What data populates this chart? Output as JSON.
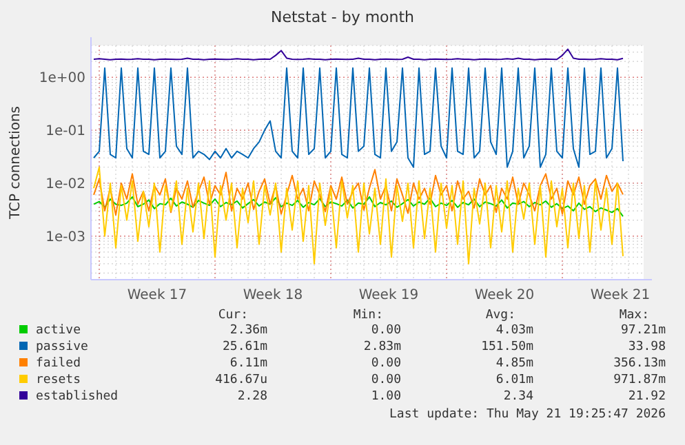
{
  "chart_data": {
    "type": "line",
    "title": "Netstat - by month",
    "ylabel": "TCP connections",
    "log": "y",
    "grid": true,
    "legend": "bottom",
    "xlim": [
      "2026-04-19T12:00",
      "2026-05-22T22:00"
    ],
    "xticks": [
      {
        "value": "2026-04-20T00:00",
        "label": null
      },
      {
        "value": "2026-04-23T12:00",
        "label": "Week 17"
      },
      {
        "value": "2026-04-27T00:00",
        "label": null
      },
      {
        "value": "2026-04-30T12:00",
        "label": "Week 18"
      },
      {
        "value": "2026-05-04T00:00",
        "label": null
      },
      {
        "value": "2026-05-07T12:00",
        "label": "Week 19"
      },
      {
        "value": "2026-05-11T00:00",
        "label": null
      },
      {
        "value": "2026-05-14T12:00",
        "label": "Week 20"
      },
      {
        "value": "2026-05-18T00:00",
        "label": null
      },
      {
        "value": "2026-05-21T12:00",
        "label": "Week 21"
      }
    ],
    "ylim": [
      0.00015,
      4
    ],
    "yticks": [
      {
        "value": 0.001,
        "label": "1e-03"
      },
      {
        "value": 0.01,
        "label": "1e-02"
      },
      {
        "value": 0.1,
        "label": "1e-01"
      },
      {
        "value": 1,
        "label": "1e+00"
      }
    ],
    "x": [
      "2026-04-19T16:00",
      "2026-04-20T00:00",
      "2026-04-20T08:00",
      "2026-04-20T16:00",
      "2026-04-21T00:00",
      "2026-04-21T08:00",
      "2026-04-21T16:00",
      "2026-04-22T00:00",
      "2026-04-22T08:00",
      "2026-04-22T16:00",
      "2026-04-23T00:00",
      "2026-04-23T08:00",
      "2026-04-23T16:00",
      "2026-04-24T00:00",
      "2026-04-24T08:00",
      "2026-04-24T16:00",
      "2026-04-25T00:00",
      "2026-04-25T08:00",
      "2026-04-25T16:00",
      "2026-04-26T00:00",
      "2026-04-26T08:00",
      "2026-04-26T16:00",
      "2026-04-27T00:00",
      "2026-04-27T08:00",
      "2026-04-27T16:00",
      "2026-04-28T00:00",
      "2026-04-28T08:00",
      "2026-04-28T16:00",
      "2026-04-29T00:00",
      "2026-04-29T08:00",
      "2026-04-29T16:00",
      "2026-04-30T00:00",
      "2026-04-30T08:00",
      "2026-04-30T16:00",
      "2026-05-01T00:00",
      "2026-05-01T08:00",
      "2026-05-01T16:00",
      "2026-05-02T00:00",
      "2026-05-02T08:00",
      "2026-05-02T16:00",
      "2026-05-03T00:00",
      "2026-05-03T08:00",
      "2026-05-03T16:00",
      "2026-05-04T00:00",
      "2026-05-04T08:00",
      "2026-05-04T16:00",
      "2026-05-05T00:00",
      "2026-05-05T08:00",
      "2026-05-05T16:00",
      "2026-05-06T00:00",
      "2026-05-06T08:00",
      "2026-05-06T16:00",
      "2026-05-07T00:00",
      "2026-05-07T08:00",
      "2026-05-07T16:00",
      "2026-05-08T00:00",
      "2026-05-08T08:00",
      "2026-05-08T16:00",
      "2026-05-09T00:00",
      "2026-05-09T08:00",
      "2026-05-09T16:00",
      "2026-05-10T00:00",
      "2026-05-10T08:00",
      "2026-05-10T16:00",
      "2026-05-11T00:00",
      "2026-05-11T08:00",
      "2026-05-11T16:00",
      "2026-05-12T00:00",
      "2026-05-12T08:00",
      "2026-05-12T16:00",
      "2026-05-13T00:00",
      "2026-05-13T08:00",
      "2026-05-13T16:00",
      "2026-05-14T00:00",
      "2026-05-14T08:00",
      "2026-05-14T16:00",
      "2026-05-15T00:00",
      "2026-05-15T08:00",
      "2026-05-15T16:00",
      "2026-05-16T00:00",
      "2026-05-16T08:00",
      "2026-05-16T16:00",
      "2026-05-17T00:00",
      "2026-05-17T08:00",
      "2026-05-17T16:00",
      "2026-05-18T00:00",
      "2026-05-18T08:00",
      "2026-05-18T16:00",
      "2026-05-19T00:00",
      "2026-05-19T08:00",
      "2026-05-19T16:00",
      "2026-05-20T00:00",
      "2026-05-20T08:00",
      "2026-05-20T16:00",
      "2026-05-21T00:00",
      "2026-05-21T08:00",
      "2026-05-21T16:00"
    ],
    "series": [
      {
        "name": "active",
        "color": "#00cc00",
        "values": [
          0.004,
          0.0045,
          0.0035,
          0.005,
          0.004,
          0.0038,
          0.0042,
          0.0055,
          0.0036,
          0.004,
          0.0048,
          0.0033,
          0.0041,
          0.0039,
          0.0052,
          0.0037,
          0.0044,
          0.004,
          0.0035,
          0.0047,
          0.0042,
          0.0038,
          0.005,
          0.0036,
          0.0043,
          0.0039,
          0.0046,
          0.0034,
          0.0041,
          0.0049,
          0.0037,
          0.0044,
          0.004,
          0.0053,
          0.0036,
          0.0042,
          0.0038,
          0.0047,
          0.0035,
          0.0043,
          0.0039,
          0.0051,
          0.0036,
          0.0044,
          0.0041,
          0.0037,
          0.0048,
          0.0034,
          0.0042,
          0.004,
          0.0055,
          0.0036,
          0.0043,
          0.0039,
          0.0046,
          0.0035,
          0.0041,
          0.0049,
          0.0037,
          0.0044,
          0.004,
          0.0052,
          0.0036,
          0.0042,
          0.0038,
          0.0047,
          0.0035,
          0.0043,
          0.0039,
          0.005,
          0.0036,
          0.0044,
          0.0041,
          0.0037,
          0.0048,
          0.0034,
          0.0042,
          0.004,
          0.0045,
          0.0036,
          0.0043,
          0.0039,
          0.0046,
          0.0035,
          0.0041,
          0.0033,
          0.0037,
          0.003,
          0.0042,
          0.0032,
          0.0036,
          0.0029,
          0.0034,
          0.0031,
          0.0028,
          0.0033,
          0.00236
        ]
      },
      {
        "name": "passive",
        "color": "#0066b3",
        "values": [
          0.03,
          0.04,
          1.5,
          0.035,
          0.03,
          1.5,
          0.045,
          0.03,
          1.5,
          0.04,
          0.035,
          1.5,
          0.03,
          0.04,
          1.5,
          0.05,
          0.035,
          1.5,
          0.03,
          0.04,
          0.035,
          0.028,
          0.04,
          0.03,
          0.045,
          0.03,
          0.04,
          0.035,
          0.03,
          0.045,
          0.06,
          0.1,
          0.15,
          0.04,
          0.03,
          1.5,
          0.04,
          0.03,
          1.5,
          0.035,
          0.045,
          1.5,
          0.03,
          0.04,
          1.5,
          0.035,
          0.03,
          1.5,
          0.04,
          0.05,
          1.5,
          0.035,
          0.03,
          1.5,
          0.04,
          0.06,
          1.5,
          0.03,
          0.02,
          1.5,
          0.035,
          0.04,
          1.5,
          0.05,
          0.03,
          1.5,
          0.04,
          0.035,
          1.5,
          0.03,
          0.04,
          1.5,
          0.06,
          0.035,
          1.5,
          0.02,
          0.04,
          1.5,
          0.03,
          0.05,
          1.5,
          0.02,
          0.035,
          1.5,
          0.04,
          0.03,
          1.5,
          0.045,
          0.02,
          1.5,
          0.035,
          0.04,
          1.5,
          0.03,
          0.045,
          1.5,
          0.026
        ]
      },
      {
        "name": "failed",
        "color": "#ff8000",
        "values": [
          0.006,
          0.012,
          0.003,
          0.008,
          0.0025,
          0.01,
          0.005,
          0.015,
          0.004,
          0.007,
          0.003,
          0.009,
          0.006,
          0.012,
          0.0028,
          0.008,
          0.005,
          0.011,
          0.0035,
          0.007,
          0.013,
          0.004,
          0.009,
          0.006,
          0.016,
          0.003,
          0.008,
          0.005,
          0.01,
          0.0032,
          0.007,
          0.012,
          0.004,
          0.009,
          0.0026,
          0.006,
          0.014,
          0.005,
          0.008,
          0.003,
          0.011,
          0.006,
          0.0029,
          0.009,
          0.005,
          0.013,
          0.004,
          0.007,
          0.01,
          0.0031,
          0.008,
          0.018,
          0.005,
          0.009,
          0.003,
          0.012,
          0.006,
          0.0027,
          0.01,
          0.005,
          0.008,
          0.004,
          0.014,
          0.006,
          0.009,
          0.003,
          0.011,
          0.005,
          0.007,
          0.0034,
          0.012,
          0.006,
          0.009,
          0.0028,
          0.008,
          0.005,
          0.013,
          0.004,
          0.01,
          0.006,
          0.003,
          0.009,
          0.015,
          0.005,
          0.008,
          0.0026,
          0.011,
          0.006,
          0.013,
          0.004,
          0.009,
          0.012,
          0.005,
          0.014,
          0.007,
          0.01,
          0.00611
        ]
      },
      {
        "name": "resets",
        "color": "#ffcc00",
        "values": [
          0.008,
          0.02,
          0.001,
          0.01,
          0.0006,
          0.009,
          0.002,
          0.011,
          0.0008,
          0.007,
          0.0015,
          0.01,
          0.0005,
          0.009,
          0.003,
          0.011,
          0.0007,
          0.008,
          0.0012,
          0.01,
          0.0009,
          0.011,
          0.0004,
          0.009,
          0.002,
          0.01,
          0.0006,
          0.008,
          0.0018,
          0.011,
          0.0007,
          0.009,
          0.0025,
          0.01,
          0.0005,
          0.008,
          0.0013,
          0.011,
          0.0008,
          0.009,
          0.0003,
          0.01,
          0.0016,
          0.008,
          0.0006,
          0.011,
          0.0022,
          0.009,
          0.0005,
          0.01,
          0.0011,
          0.008,
          0.0007,
          0.012,
          0.0004,
          0.009,
          0.0019,
          0.01,
          0.0006,
          0.011,
          0.0009,
          0.008,
          0.0005,
          0.01,
          0.0014,
          0.009,
          0.0007,
          0.011,
          0.0003,
          0.008,
          0.0017,
          0.01,
          0.0006,
          0.009,
          0.0012,
          0.011,
          0.0005,
          0.008,
          0.0021,
          0.01,
          0.0007,
          0.009,
          0.0004,
          0.011,
          0.0015,
          0.008,
          0.0006,
          0.01,
          0.0009,
          0.009,
          0.0005,
          0.011,
          0.0013,
          0.008,
          0.0007,
          0.01,
          0.000417
        ]
      },
      {
        "name": "established",
        "color": "#330099",
        "values": [
          2.2,
          2.25,
          2.2,
          2.15,
          2.2,
          2.22,
          2.18,
          2.2,
          2.25,
          2.2,
          2.2,
          2.15,
          2.2,
          2.22,
          2.2,
          2.18,
          2.2,
          2.3,
          2.2,
          2.2,
          2.15,
          2.2,
          2.22,
          2.2,
          2.18,
          2.2,
          2.25,
          2.2,
          2.2,
          2.15,
          2.2,
          2.22,
          2.2,
          2.6,
          3.2,
          2.3,
          2.2,
          2.18,
          2.2,
          2.25,
          2.2,
          2.2,
          2.15,
          2.2,
          2.22,
          2.2,
          2.18,
          2.2,
          2.3,
          2.2,
          2.2,
          2.15,
          2.2,
          2.22,
          2.2,
          2.18,
          2.2,
          2.4,
          2.2,
          2.2,
          2.15,
          2.2,
          2.22,
          2.2,
          2.18,
          2.2,
          2.25,
          2.2,
          2.2,
          2.15,
          2.2,
          2.22,
          2.2,
          2.18,
          2.2,
          2.25,
          2.2,
          2.3,
          2.2,
          2.2,
          2.15,
          2.2,
          2.22,
          2.2,
          2.18,
          2.6,
          3.4,
          2.3,
          2.2,
          2.2,
          2.18,
          2.2,
          2.25,
          2.2,
          2.2,
          2.15,
          2.28
        ]
      }
    ],
    "annotations": [
      "Cur:",
      "Min:",
      "Avg:",
      "Max:",
      "2.36m",
      "0.00",
      "4.03m",
      "97.21m",
      "25.61m",
      "2.83m",
      "151.50m",
      "33.98",
      "6.11m",
      "0.00",
      "4.85m",
      "356.13m",
      "416.67u",
      "0.00",
      "6.01m",
      "971.87m",
      "2.28",
      "1.00",
      "2.34",
      "21.92",
      "Last update: Thu May 21 19:25:47 2026"
    ]
  }
}
